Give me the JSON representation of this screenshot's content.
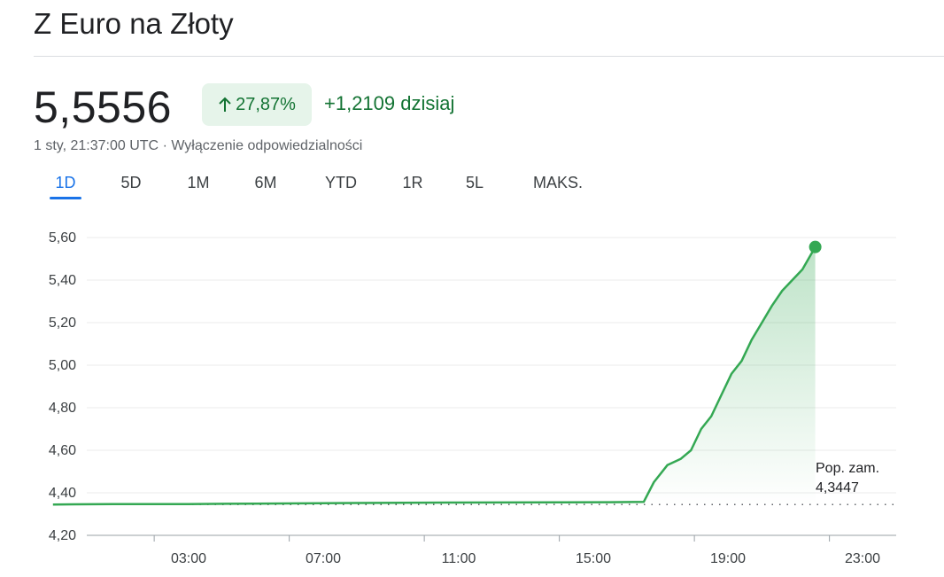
{
  "header": {
    "title": "Z Euro na Złoty",
    "price": "5,5556",
    "change_percent": "27,87%",
    "change_today": "+1,2109 dzisiaj",
    "timestamp": "1 sty, 21:37:00 UTC",
    "separator": "·",
    "disclaimer": "Wyłączenie odpowiedzialności",
    "arrow_icon": "arrow-up-icon"
  },
  "tabs": [
    {
      "label": "1D",
      "active": true
    },
    {
      "label": "5D"
    },
    {
      "label": "1M"
    },
    {
      "label": "6M"
    },
    {
      "label": "YTD"
    },
    {
      "label": "1R"
    },
    {
      "label": "5L"
    },
    {
      "label": "MAKS."
    }
  ],
  "colors": {
    "line": "#34a853",
    "accent": "#1a73e8",
    "positive": "#137333",
    "badge_bg": "#e6f4ea"
  },
  "chart_data": {
    "type": "area",
    "x_unit": "hours (UTC)",
    "x_ticks": [
      "03:00",
      "07:00",
      "11:00",
      "15:00",
      "19:00",
      "23:00"
    ],
    "x_tick_values": [
      3,
      7,
      11,
      15,
      19,
      23
    ],
    "xlim": [
      0,
      24
    ],
    "y_ticks": [
      "4,20",
      "4,40",
      "4,60",
      "4,80",
      "5,00",
      "5,20",
      "5,40",
      "5,60"
    ],
    "y_tick_values": [
      4.2,
      4.4,
      4.6,
      4.8,
      5.0,
      5.2,
      5.4,
      5.6
    ],
    "ylim": [
      4.2,
      5.6
    ],
    "grid": true,
    "previous_close": {
      "label": "Pop. zam.",
      "value_label": "4,3447",
      "value": 4.3447
    },
    "series": [
      {
        "points": [
          [
            0.0,
            4.345
          ],
          [
            0.6,
            4.346
          ],
          [
            2.0,
            4.347
          ],
          [
            4.0,
            4.347
          ],
          [
            6.0,
            4.349
          ],
          [
            8.0,
            4.351
          ],
          [
            9.0,
            4.352
          ],
          [
            12.0,
            4.354
          ],
          [
            15.0,
            4.355
          ],
          [
            16.5,
            4.356
          ],
          [
            17.5,
            4.357
          ],
          [
            17.8,
            4.45
          ],
          [
            18.2,
            4.53
          ],
          [
            18.6,
            4.56
          ],
          [
            18.9,
            4.6
          ],
          [
            19.2,
            4.7
          ],
          [
            19.5,
            4.76
          ],
          [
            19.8,
            4.86
          ],
          [
            20.1,
            4.96
          ],
          [
            20.4,
            5.02
          ],
          [
            20.7,
            5.12
          ],
          [
            21.0,
            5.2
          ],
          [
            21.3,
            5.28
          ],
          [
            21.6,
            5.35
          ],
          [
            21.9,
            5.4
          ],
          [
            22.2,
            5.45
          ],
          [
            22.45,
            5.52
          ],
          [
            22.58,
            5.5556
          ]
        ]
      }
    ]
  }
}
